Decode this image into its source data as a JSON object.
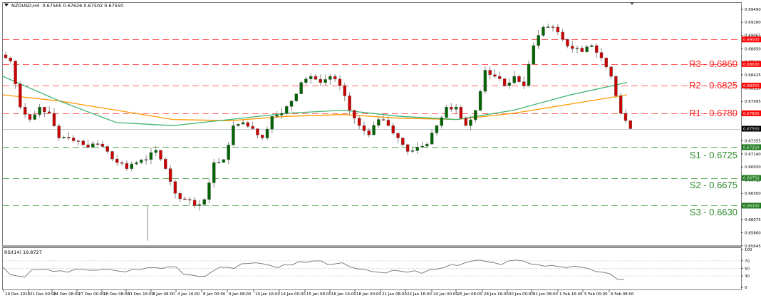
{
  "header": {
    "symbol": "NZDUSD,H4",
    "ohlc": "0.67565 0.67626 0.67502 0.67550"
  },
  "rsi_panel": {
    "label": "RSI(14) 19.8727",
    "ticks": [
      "100",
      "70",
      "50",
      "30",
      "0"
    ]
  },
  "colors": {
    "bull_candle": "#006400",
    "bear_candle": "#cc0000",
    "resistance": "#ff0000",
    "support": "#228b22",
    "ma_fast": "#3cb371",
    "ma_slow": "#ff9900",
    "current_price_line": "#c0c8d0",
    "rsi_line": "#707070"
  },
  "price_axis": {
    "ticks": [
      "0.69490",
      "0.69280",
      "0.69065",
      "0.68850",
      "0.68640",
      "0.68425",
      "0.68210",
      "0.67995",
      "0.67785",
      "0.67355",
      "0.67140",
      "0.66930",
      "0.66715",
      "0.66500",
      "0.66290",
      "0.66075",
      "0.65860",
      "0.65645"
    ],
    "current_price_tag": "0.67550",
    "level_tags": [
      {
        "value": "0.69000",
        "type": "resistance"
      },
      {
        "value": "0.68600",
        "type": "resistance"
      },
      {
        "value": "0.68250",
        "type": "resistance"
      },
      {
        "value": "0.67800",
        "type": "resistance"
      },
      {
        "value": "0.67250",
        "type": "support"
      },
      {
        "value": "0.66750",
        "type": "support"
      },
      {
        "value": "0.66300",
        "type": "support"
      }
    ]
  },
  "levels": {
    "r3": "R3 - 0.6860",
    "r2": "R2 - 0.6825",
    "r1": "R1 - 0.6780",
    "s1": "S1 - 0.6725",
    "s2": "S2 - 0.6675",
    "s3": "S3 - 0.6630"
  },
  "time_axis": {
    "ticks": [
      "19 Dec 2018",
      "21 Dec 00:00",
      "24 Dec 08:00",
      "27 Dec 00:00",
      "28 Dec 08:00",
      "31 Dec 16:00",
      "3 Jan 08:00",
      "4 Jan 16:00",
      "8 Jan 00:00",
      "9 Jan 08:00",
      "10 Jan 16:00",
      "14 Jan 00:00",
      "15 Jan 08:00",
      "16 Jan 16:00",
      "18 Jan 00:00",
      "21 Jan 08:00",
      "22 Jan 16:00",
      "24 Jan 00:00",
      "25 Jan 08:00",
      "28 Jan 16:00",
      "30 Jan 00:00",
      "31 Jan 08:00",
      "1 Feb 16:00",
      "5 Feb 00:00",
      "6 Feb 08:00"
    ]
  },
  "chart_data": {
    "type": "candlestick",
    "title": "NZDUSD,H4",
    "ohlc_last": {
      "open": 0.67565,
      "high": 0.67626,
      "low": 0.67502,
      "close": 0.6755
    },
    "ylim": [
      0.65645,
      0.6949
    ],
    "xlabel": "",
    "ylabel": "",
    "grid": false,
    "x_range": [
      "19 Dec 2018",
      "6 Feb 2019"
    ],
    "horizontal_levels": [
      {
        "name": "R3",
        "value": 0.686,
        "color": "red",
        "style": "dashed"
      },
      {
        "name": "R2",
        "value": 0.6825,
        "color": "red",
        "style": "dashed"
      },
      {
        "name": "R1",
        "value": 0.678,
        "color": "red",
        "style": "dashed"
      },
      {
        "name": "unlabeled",
        "value": 0.69,
        "color": "red",
        "style": "dashed"
      },
      {
        "name": "S1",
        "value": 0.6725,
        "color": "green",
        "style": "dashed"
      },
      {
        "name": "S2",
        "value": 0.6675,
        "color": "green",
        "style": "dashed"
      },
      {
        "name": "S3",
        "value": 0.663,
        "color": "green",
        "style": "dashed"
      },
      {
        "name": "current",
        "value": 0.6755,
        "color": "gray",
        "style": "solid"
      }
    ],
    "series": [
      {
        "name": "Price H4 (approx closes)",
        "values": [
          0.6865,
          0.679,
          0.677,
          0.679,
          0.678,
          0.674,
          0.674,
          0.6735,
          0.6725,
          0.673,
          0.6718,
          0.67,
          0.669,
          0.67,
          0.6705,
          0.672,
          0.669,
          0.665,
          0.664,
          0.663,
          0.664,
          0.67,
          0.6705,
          0.676,
          0.6765,
          0.6755,
          0.674,
          0.6775,
          0.678,
          0.68,
          0.683,
          0.684,
          0.683,
          0.684,
          0.6825,
          0.6785,
          0.676,
          0.6745,
          0.677,
          0.676,
          0.674,
          0.6718,
          0.6725,
          0.673,
          0.676,
          0.679,
          0.679,
          0.676,
          0.6785,
          0.685,
          0.684,
          0.6825,
          0.684,
          0.6825,
          0.689,
          0.692,
          0.692,
          0.69,
          0.6885,
          0.688,
          0.689,
          0.687,
          0.684,
          0.678,
          0.6755
        ]
      },
      {
        "name": "MA fast (green)",
        "values": [
          0.684,
          0.68,
          0.6765,
          0.676,
          0.677,
          0.678,
          0.6785,
          0.6775,
          0.677,
          0.6785,
          0.681,
          0.683
        ]
      },
      {
        "name": "MA slow (orange)",
        "values": [
          0.681,
          0.68,
          0.6785,
          0.677,
          0.6768,
          0.6775,
          0.6778,
          0.6772,
          0.677,
          0.678,
          0.6795,
          0.681
        ]
      }
    ],
    "indicator": {
      "name": "RSI(14)",
      "last_value": 19.8727,
      "ylim": [
        0,
        100
      ],
      "levels": [
        70,
        50,
        30
      ],
      "values": [
        54,
        34,
        30,
        27,
        46,
        46,
        48,
        42,
        44,
        40,
        48,
        47,
        45,
        45,
        48,
        46,
        43,
        41,
        48,
        46,
        52,
        52,
        50,
        55,
        54,
        35,
        33,
        29,
        29,
        42,
        53,
        53,
        50,
        62,
        63,
        65,
        62,
        58,
        52,
        60,
        59,
        68,
        66,
        70,
        70,
        60,
        62,
        65,
        55,
        49,
        48,
        42,
        40,
        38,
        45,
        43,
        40,
        44,
        37,
        46,
        48,
        52,
        60,
        58,
        65,
        70,
        72,
        68,
        65,
        60,
        70,
        72,
        70,
        62,
        60,
        56,
        58,
        55,
        52,
        56,
        54,
        50,
        42,
        40,
        36,
        22,
        20
      ]
    }
  }
}
